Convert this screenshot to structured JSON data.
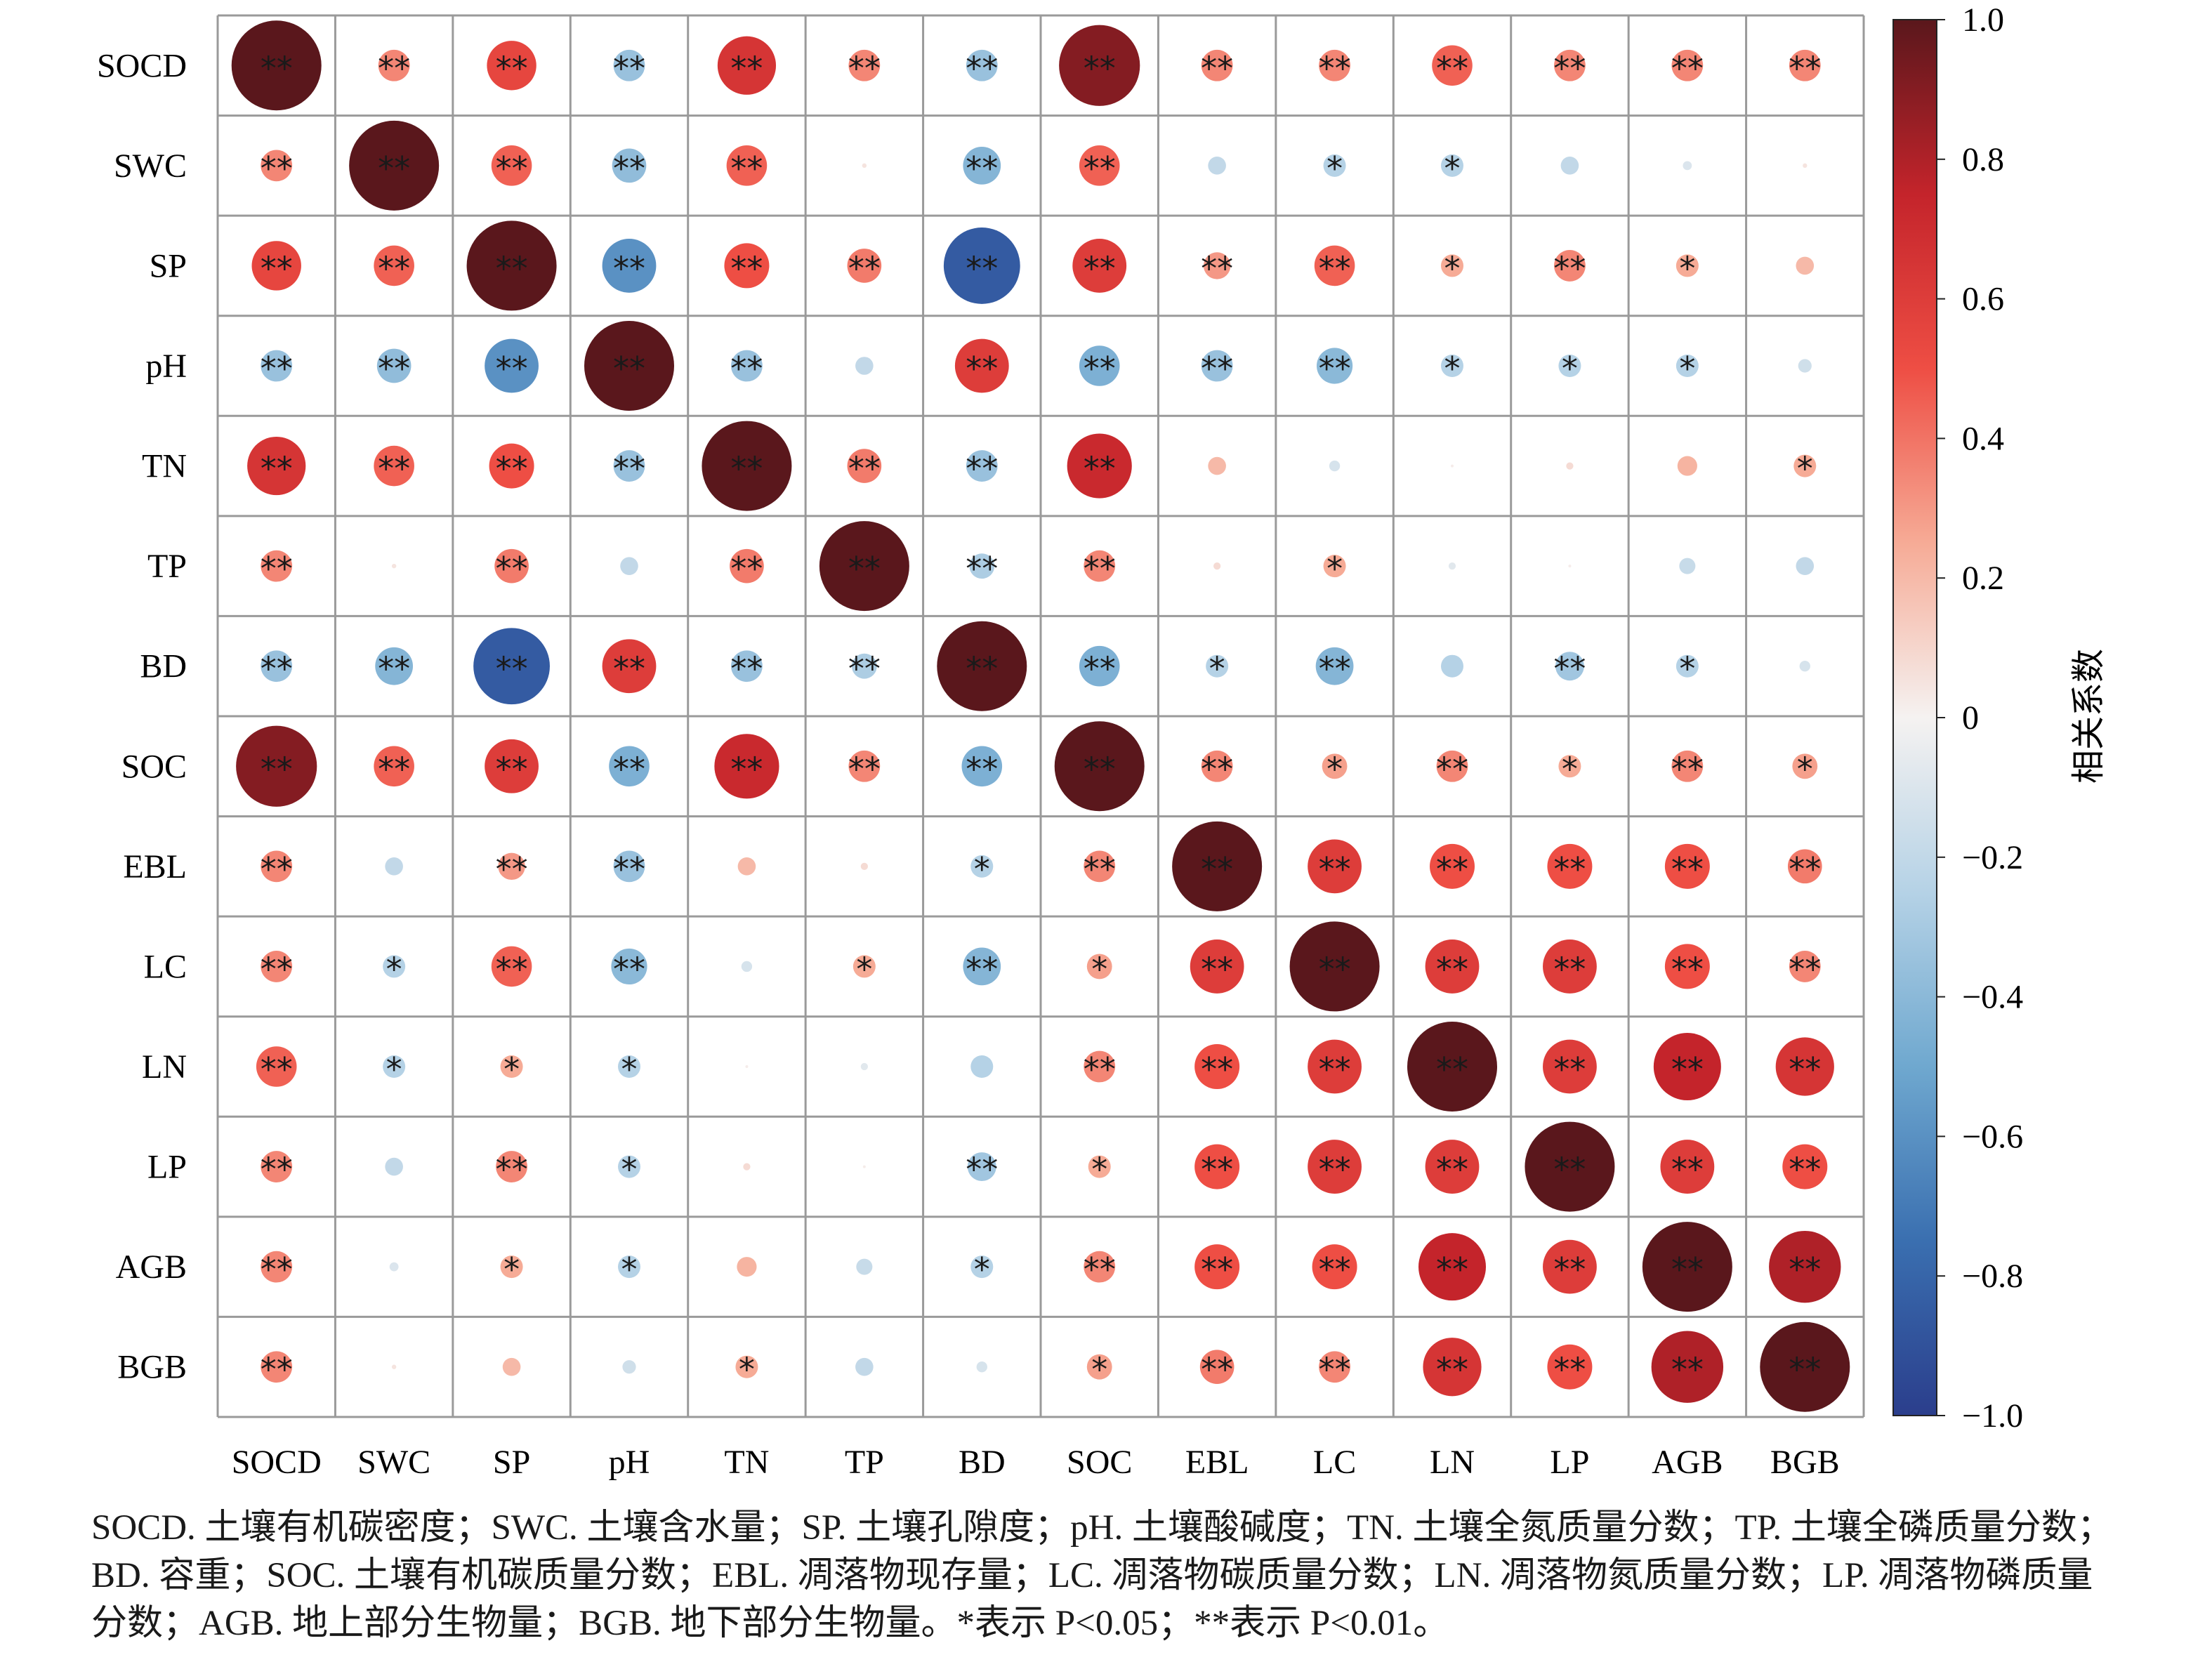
{
  "chart_data": {
    "type": "heatmap",
    "style": "correlation-circle-matrix",
    "variables": [
      "SOCD",
      "SWC",
      "SP",
      "pH",
      "TN",
      "TP",
      "BD",
      "SOC",
      "EBL",
      "LC",
      "LN",
      "LP",
      "AGB",
      "BGB"
    ],
    "values": [
      [
        1.0,
        0.35,
        0.55,
        -0.35,
        0.65,
        0.35,
        -0.35,
        0.9,
        0.35,
        0.35,
        0.45,
        0.35,
        0.35,
        0.35
      ],
      [
        0.35,
        1.0,
        0.45,
        -0.38,
        0.45,
        0.05,
        -0.42,
        0.45,
        -0.2,
        -0.25,
        -0.25,
        -0.2,
        -0.1,
        0.05
      ],
      [
        0.55,
        0.45,
        1.0,
        -0.6,
        0.5,
        0.38,
        -0.85,
        0.6,
        0.3,
        0.45,
        0.25,
        0.35,
        0.25,
        0.2
      ],
      [
        -0.35,
        -0.38,
        -0.6,
        1.0,
        -0.35,
        -0.2,
        0.6,
        -0.45,
        -0.35,
        -0.4,
        -0.25,
        -0.25,
        -0.25,
        -0.15
      ],
      [
        0.65,
        0.45,
        0.5,
        -0.35,
        1.0,
        0.38,
        -0.35,
        0.72,
        0.2,
        -0.12,
        0.02,
        0.08,
        0.22,
        0.25
      ],
      [
        0.35,
        0.05,
        0.38,
        -0.2,
        0.38,
        1.0,
        -0.28,
        0.35,
        0.08,
        0.25,
        -0.08,
        0.02,
        -0.18,
        -0.2
      ],
      [
        -0.35,
        -0.42,
        -0.85,
        0.6,
        -0.35,
        -0.28,
        1.0,
        -0.45,
        -0.25,
        -0.42,
        -0.25,
        -0.32,
        -0.25,
        -0.12
      ],
      [
        0.9,
        0.45,
        0.6,
        -0.45,
        0.72,
        0.35,
        -0.45,
        1.0,
        0.35,
        0.28,
        0.35,
        0.25,
        0.35,
        0.28
      ],
      [
        0.35,
        -0.2,
        0.3,
        -0.35,
        0.2,
        0.08,
        -0.25,
        0.35,
        1.0,
        0.6,
        0.5,
        0.5,
        0.5,
        0.38
      ],
      [
        0.35,
        -0.25,
        0.45,
        -0.4,
        -0.12,
        0.25,
        -0.42,
        0.28,
        0.6,
        1.0,
        0.6,
        0.6,
        0.5,
        0.35
      ],
      [
        0.45,
        -0.25,
        0.25,
        -0.25,
        0.02,
        -0.08,
        -0.25,
        0.35,
        0.5,
        0.6,
        1.0,
        0.6,
        0.75,
        0.65
      ],
      [
        0.35,
        -0.2,
        0.35,
        -0.25,
        0.08,
        0.02,
        -0.32,
        0.25,
        0.5,
        0.6,
        0.6,
        1.0,
        0.6,
        0.5
      ],
      [
        0.35,
        -0.1,
        0.25,
        -0.25,
        0.22,
        -0.18,
        -0.25,
        0.35,
        0.5,
        0.5,
        0.75,
        0.6,
        1.0,
        0.8
      ],
      [
        0.35,
        0.05,
        0.2,
        -0.15,
        0.25,
        -0.2,
        -0.12,
        0.28,
        0.38,
        0.35,
        0.65,
        0.5,
        0.8,
        1.0
      ]
    ],
    "significance": [
      [
        "**",
        "**",
        "**",
        "**",
        "**",
        "**",
        "**",
        "**",
        "**",
        "**",
        "**",
        "**",
        "**",
        "**"
      ],
      [
        "**",
        "**",
        "**",
        "**",
        "**",
        "",
        "**",
        "**",
        "",
        "*",
        "*",
        "",
        "",
        ""
      ],
      [
        "**",
        "**",
        "**",
        "**",
        "**",
        "**",
        "**",
        "**",
        "**",
        "**",
        "*",
        "**",
        "*",
        ""
      ],
      [
        "**",
        "**",
        "**",
        "**",
        "**",
        "",
        "**",
        "**",
        "**",
        "**",
        "*",
        "*",
        "*",
        ""
      ],
      [
        "**",
        "**",
        "**",
        "**",
        "**",
        "**",
        "**",
        "**",
        "",
        "",
        "",
        "",
        "",
        "*"
      ],
      [
        "**",
        "",
        "**",
        "",
        "**",
        "**",
        "**",
        "**",
        "",
        "*",
        "",
        "",
        "",
        ""
      ],
      [
        "**",
        "**",
        "**",
        "**",
        "**",
        "**",
        "**",
        "**",
        "*",
        "**",
        "",
        "**",
        "*",
        ""
      ],
      [
        "**",
        "**",
        "**",
        "**",
        "**",
        "**",
        "**",
        "**",
        "**",
        "*",
        "**",
        "*",
        "**",
        "*"
      ],
      [
        "**",
        "",
        "**",
        "**",
        "",
        "",
        "*",
        "**",
        "**",
        "**",
        "**",
        "**",
        "**",
        "**"
      ],
      [
        "**",
        "*",
        "**",
        "**",
        "",
        "*",
        "**",
        "*",
        "**",
        "**",
        "**",
        "**",
        "**",
        "**"
      ],
      [
        "**",
        "*",
        "*",
        "*",
        "",
        "",
        "",
        "**",
        "**",
        "**",
        "**",
        "**",
        "**",
        "**"
      ],
      [
        "**",
        "",
        "**",
        "*",
        "",
        "",
        "**",
        "*",
        "**",
        "**",
        "**",
        "**",
        "**",
        "**"
      ],
      [
        "**",
        "",
        "*",
        "*",
        "",
        "",
        "*",
        "**",
        "**",
        "**",
        "**",
        "**",
        "**",
        "**"
      ],
      [
        "**",
        "",
        "",
        "",
        "*",
        "",
        "",
        "*",
        "**",
        "**",
        "**",
        "**",
        "**",
        "**"
      ]
    ],
    "colorbar": {
      "label": "相关系数",
      "range": [
        -1.0,
        1.0
      ],
      "ticks": [
        1.0,
        0.8,
        0.6,
        0.4,
        0.2,
        0,
        -0.2,
        -0.4,
        -0.6,
        -0.8,
        -1.0
      ],
      "tick_labels": [
        "1.0",
        "0.8",
        "0.6",
        "0.4",
        "0.2",
        "0",
        "−0.2",
        "−0.4",
        "−0.6",
        "−0.8",
        "−1.0"
      ],
      "colors": [
        "#2b3e8c",
        "#3a6fb0",
        "#6fa8cf",
        "#b5d2e6",
        "#f5f2f1",
        "#f6ab96",
        "#ee4e44",
        "#c4242b",
        "#5a171c"
      ]
    },
    "caption": "SOCD. 土壤有机碳密度；SWC. 土壤含水量；SP. 土壤孔隙度；pH. 土壤酸碱度；TN. 土壤全氮质量分数；TP. 土壤全磷质量分数；BD. 容重；SOC. 土壤有机碳质量分数；EBL. 凋落物现存量；LC. 凋落物碳质量分数；LN. 凋落物氮质量分数；LP. 凋落物磷质量分数；AGB. 地上部分生物量；BGB. 地下部分生物量。*表示 P<0.05；**表示 P<0.01。"
  }
}
